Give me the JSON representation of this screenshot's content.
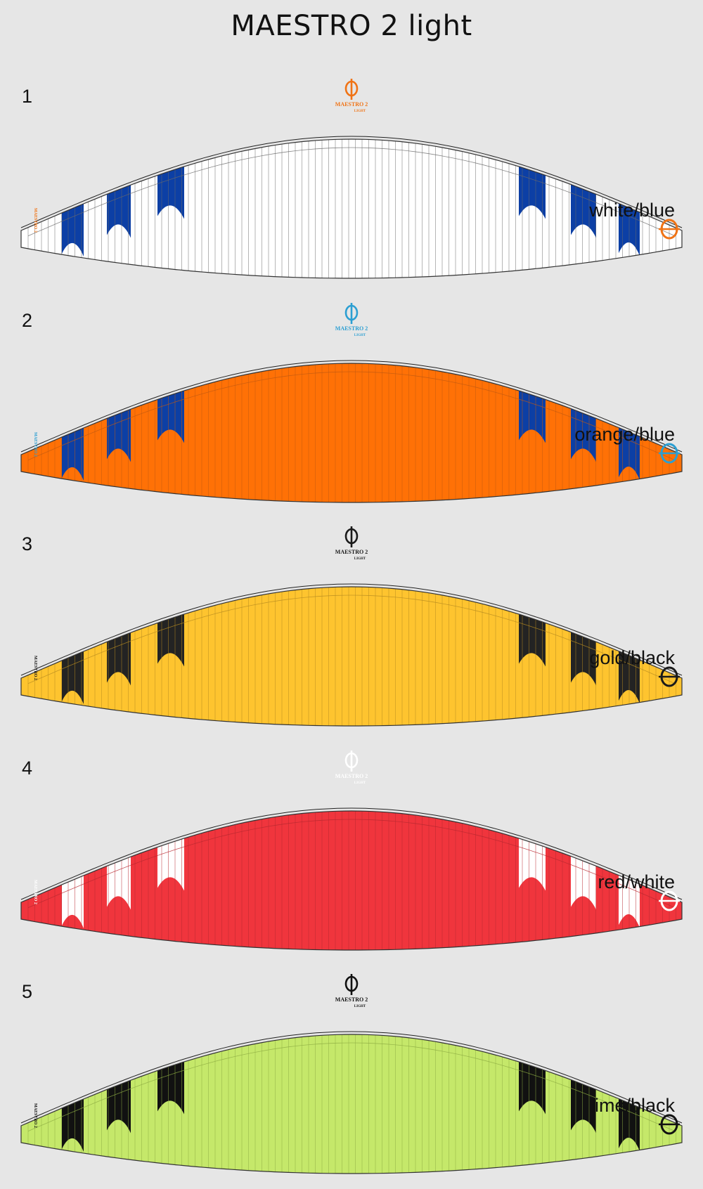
{
  "title": "MAESTRO 2 light",
  "logo": {
    "name": "MAESTRO 2",
    "sub": "LIGHT",
    "side_text": "MAESTRO 2"
  },
  "variants": [
    {
      "number": "1",
      "label": "white/blue",
      "base": "#ffffff",
      "accent": "#0c3fa5",
      "logo": "#f07315",
      "rib": "#6a6a6a"
    },
    {
      "number": "2",
      "label": "orange/blue",
      "base": "#ff7106",
      "accent": "#0c3fa5",
      "logo": "#2c9fd2",
      "rib": "#c25a10"
    },
    {
      "number": "3",
      "label": "gold/black",
      "base": "#fec42f",
      "accent": "#232323",
      "logo": "#1a1a1a",
      "rib": "#b88c20"
    },
    {
      "number": "4",
      "label": "red/white",
      "base": "#f0353d",
      "accent": "#ffffff",
      "logo": "#ffffff",
      "rib": "#b82830"
    },
    {
      "number": "5",
      "label": "lime/black",
      "base": "#c5e86a",
      "accent": "#111111",
      "logo": "#111111",
      "rib": "#8fae44"
    }
  ]
}
